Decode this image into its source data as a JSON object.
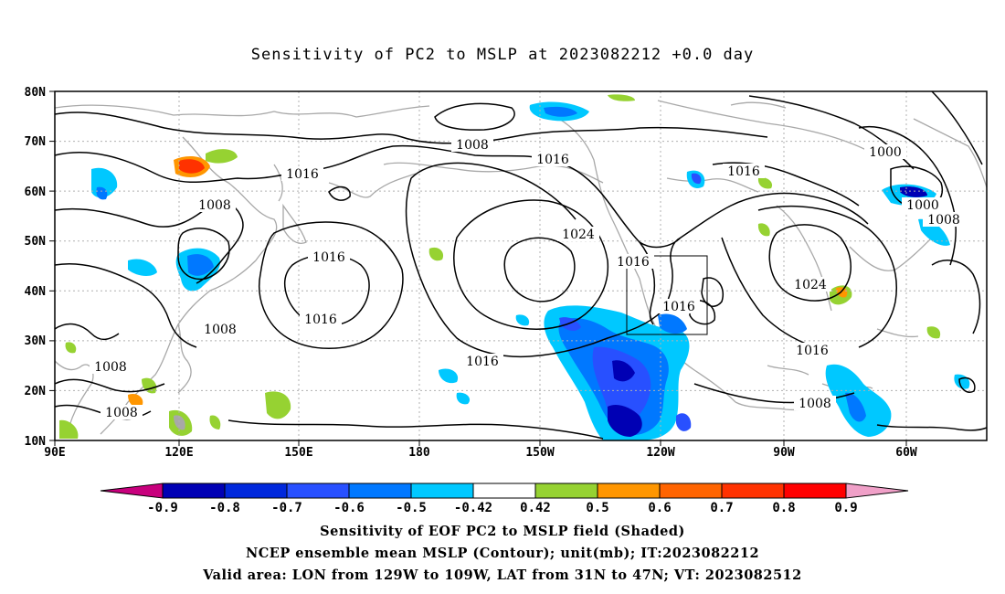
{
  "title": "Sensitivity of PC2 to MSLP at 2023082212 +0.0 day",
  "lat_labels": [
    "80N",
    "70N",
    "60N",
    "50N",
    "40N",
    "30N",
    "20N",
    "10N"
  ],
  "lon_labels": [
    "90E",
    "120E",
    "150E",
    "180",
    "150W",
    "120W",
    "90W",
    "60W"
  ],
  "contour_labels": [
    "1008",
    "1016",
    "1008",
    "1016",
    "1016",
    "1024",
    "1016",
    "1016",
    "1000",
    "1000",
    "1008",
    "1016",
    "1008",
    "1024",
    "1016",
    "1016",
    "1016",
    "1008",
    "1008",
    "1008"
  ],
  "colorbar": {
    "labels": [
      "-0.9",
      "-0.8",
      "-0.7",
      "-0.6",
      "-0.5",
      "-0.42",
      "0.42",
      "0.5",
      "0.6",
      "0.7",
      "0.8",
      "0.9"
    ],
    "colors": [
      "#c8007d",
      "#0000b4",
      "#0028dc",
      "#2850ff",
      "#0078ff",
      "#00c8ff",
      "#ffffff",
      "#96d232",
      "#ff9600",
      "#ff6400",
      "#ff3200",
      "#ff0000",
      "#f0a0c8"
    ]
  },
  "captions": [
    "Sensitivity of EOF PC2 to MSLP field (Shaded)",
    "NCEP ensemble mean MSLP (Contour); unit(mb); IT:2023082212",
    "Valid area: LON from 129W to 109W, LAT from 31N to 47N; VT: 2023082512"
  ]
}
